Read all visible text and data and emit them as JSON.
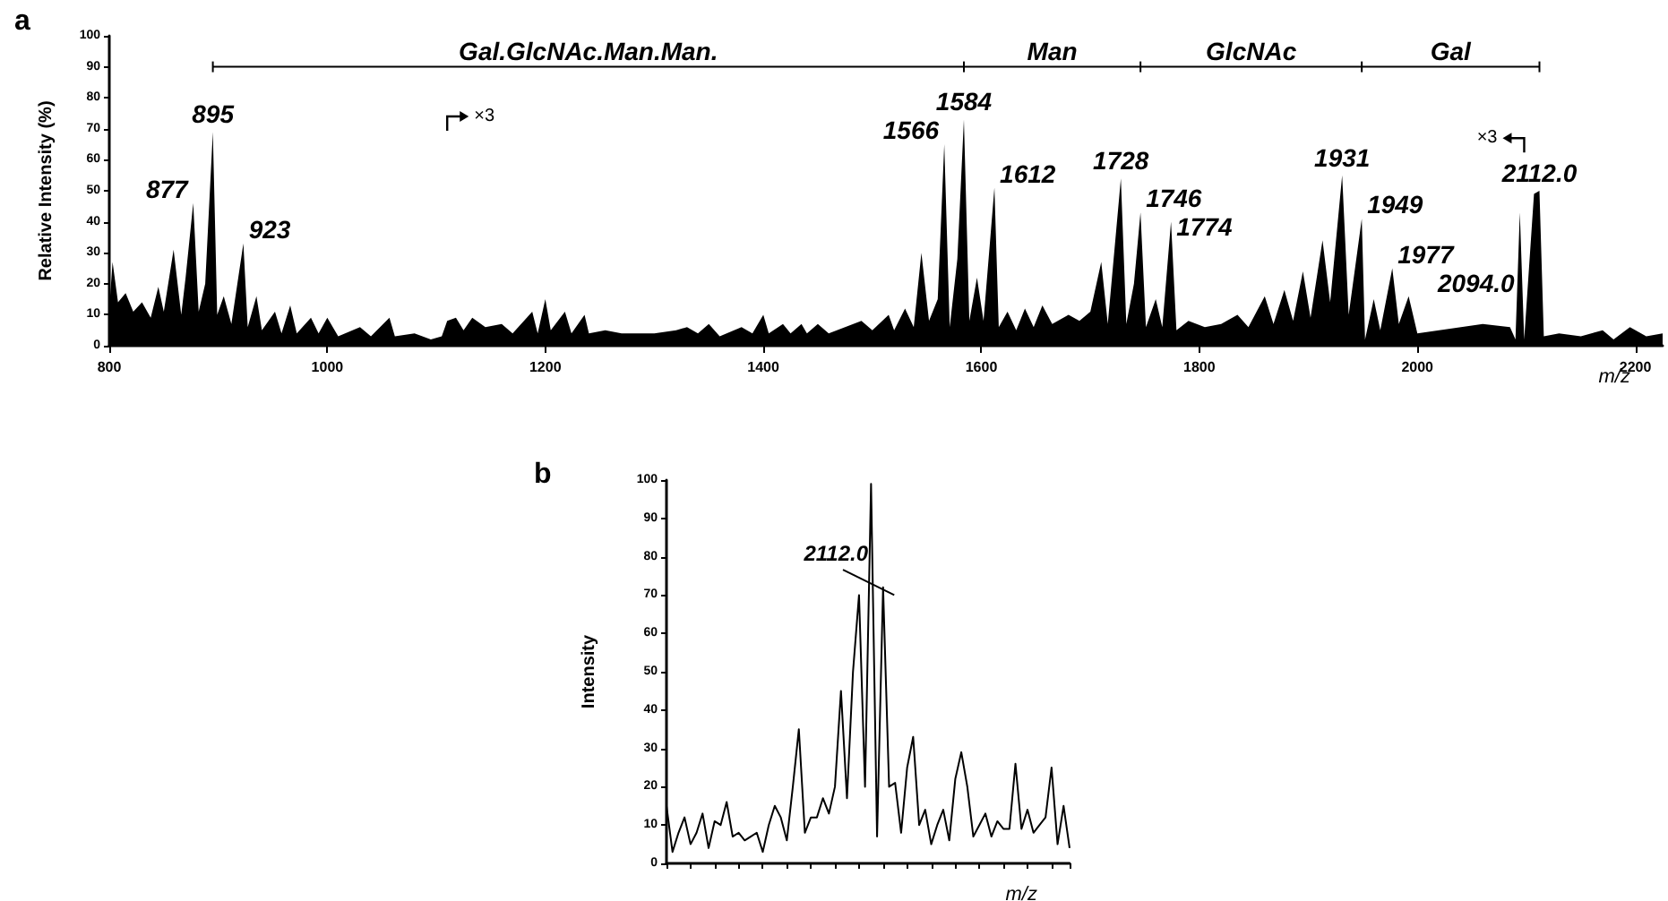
{
  "chart_data": [
    {
      "type": "area",
      "title": "a",
      "xlabel": "m/z",
      "ylabel": "Relative Intensity (%)",
      "color": "#000000",
      "x": [
        800,
        803,
        808,
        815,
        822,
        830,
        838,
        845,
        850,
        859,
        866,
        870,
        877,
        882,
        888,
        895,
        899,
        905,
        912,
        923,
        927,
        935,
        940,
        952,
        958,
        966,
        972,
        985,
        992,
        1000,
        1010,
        1030,
        1040,
        1057,
        1062,
        1080,
        1095,
        1105,
        1110,
        1118,
        1125,
        1133,
        1145,
        1160,
        1170,
        1188,
        1193,
        1200,
        1205,
        1218,
        1224,
        1236,
        1240,
        1255,
        1270,
        1285,
        1300,
        1320,
        1330,
        1340,
        1350,
        1360,
        1380,
        1390,
        1400,
        1405,
        1418,
        1425,
        1435,
        1440,
        1450,
        1460,
        1475,
        1490,
        1500,
        1515,
        1520,
        1530,
        1538,
        1545,
        1552,
        1560,
        1566,
        1571,
        1578,
        1584,
        1589,
        1596,
        1602,
        1612,
        1616,
        1624,
        1632,
        1640,
        1648,
        1656,
        1665,
        1680,
        1690,
        1700,
        1710,
        1716,
        1728,
        1733,
        1740,
        1746,
        1751,
        1760,
        1766,
        1774,
        1779,
        1790,
        1805,
        1820,
        1835,
        1845,
        1860,
        1868,
        1878,
        1886,
        1895,
        1902,
        1913,
        1920,
        1931,
        1937,
        1944,
        1949,
        1952,
        1960,
        1966,
        1977,
        1983,
        1992,
        2000,
        2020,
        2040,
        2060,
        2085,
        2090,
        2094,
        2098,
        2107,
        2112,
        2116,
        2130,
        2150,
        2170,
        2180,
        2195,
        2210,
        2225
      ],
      "values": [
        12,
        27,
        14,
        17,
        11,
        14,
        9,
        19,
        11,
        31,
        10,
        22,
        46,
        11,
        20,
        69,
        10,
        16,
        7,
        33,
        6,
        16,
        5,
        11,
        4,
        13,
        4,
        9,
        4,
        9,
        3,
        6,
        3,
        9,
        3,
        4,
        2,
        3,
        8,
        9,
        5,
        9,
        6,
        7,
        4,
        11,
        4,
        15,
        5,
        11,
        4,
        10,
        4,
        5,
        4,
        4,
        4,
        5,
        6,
        4,
        7,
        3,
        6,
        4,
        10,
        4,
        7,
        4,
        7,
        4,
        7,
        4,
        6,
        8,
        5,
        10,
        5,
        12,
        6,
        30,
        8,
        15,
        65,
        6,
        28,
        73,
        8,
        22,
        8,
        51,
        6,
        11,
        5,
        12,
        6,
        13,
        7,
        10,
        8,
        11,
        27,
        7,
        54,
        7,
        20,
        43,
        6,
        15,
        6,
        40,
        5,
        8,
        6,
        7,
        10,
        6,
        16,
        7,
        18,
        8,
        24,
        9,
        34,
        14,
        55,
        10,
        28,
        41,
        2,
        15,
        5,
        25,
        7,
        16,
        4,
        5,
        6,
        7,
        6,
        2,
        43,
        2,
        49,
        50,
        3,
        4,
        3,
        5,
        2,
        6,
        3,
        4
      ],
      "xlim": [
        800,
        2225
      ],
      "xticks": [
        800,
        1000,
        1200,
        1400,
        1600,
        1800,
        2000,
        2200
      ],
      "ylim": [
        0,
        100
      ],
      "yticks": [
        0,
        10,
        20,
        30,
        40,
        50,
        60,
        70,
        80,
        90,
        100
      ],
      "annotations": [
        {
          "text": "877",
          "x": 877,
          "y": 46
        },
        {
          "text": "895",
          "x": 895,
          "y": 69
        },
        {
          "text": "923",
          "x": 923,
          "y": 33
        },
        {
          "text": "1566",
          "x": 1566,
          "y": 65
        },
        {
          "text": "1584",
          "x": 1584,
          "y": 73
        },
        {
          "text": "1612",
          "x": 1612,
          "y": 51
        },
        {
          "text": "1728",
          "x": 1728,
          "y": 54
        },
        {
          "text": "1746",
          "x": 1746,
          "y": 43
        },
        {
          "text": "1774",
          "x": 1774,
          "y": 40
        },
        {
          "text": "1931",
          "x": 1931,
          "y": 55
        },
        {
          "text": "1949",
          "x": 1949,
          "y": 41
        },
        {
          "text": "1977",
          "x": 1977,
          "y": 25
        },
        {
          "text": "2094.0",
          "x": 2094,
          "y": 43
        },
        {
          "text": "2112.0",
          "x": 2112,
          "y": 50
        },
        "Gal.GlcNAc.Man.Man.",
        "Man",
        "GlcNAc",
        "Gal",
        "×3",
        "×3"
      ]
    },
    {
      "type": "line",
      "title": "b",
      "xlabel": "m/z",
      "ylabel": "Intensity",
      "color": "#000000",
      "tick_labels": "y",
      "categories": [
        null,
        null,
        null,
        null,
        null,
        null,
        null,
        null,
        null,
        null,
        null,
        null,
        null,
        null,
        null,
        null,
        null,
        null,
        null,
        null,
        null,
        null,
        null,
        null,
        null,
        null,
        null,
        null,
        null,
        null,
        null,
        null,
        null,
        null,
        null,
        null,
        null,
        null,
        null,
        null,
        null,
        null,
        null,
        null,
        null,
        null,
        null,
        null,
        null,
        null,
        null,
        null,
        null,
        null,
        null,
        null,
        null,
        null,
        null,
        null,
        null,
        null,
        null,
        null,
        null,
        null,
        null,
        null
      ],
      "values": [
        15,
        3,
        8,
        12,
        5,
        8,
        13,
        4,
        11,
        10,
        16,
        7,
        8,
        6,
        7,
        8,
        3,
        10,
        15,
        12,
        6,
        20,
        35,
        8,
        12,
        12,
        17,
        13,
        20,
        45,
        17,
        50,
        70,
        20,
        99,
        7,
        72,
        20,
        21,
        8,
        25,
        33,
        10,
        14,
        5,
        10,
        14,
        6,
        22,
        29,
        20,
        7,
        10,
        13,
        7,
        11,
        9,
        9,
        26,
        9,
        14,
        8,
        10,
        12,
        25,
        5,
        15,
        4
      ],
      "ylim": [
        0,
        100
      ],
      "yticks": [
        0,
        10,
        20,
        30,
        40,
        50,
        60,
        70,
        80,
        90,
        100
      ],
      "annotations": [
        "2112.0"
      ]
    }
  ]
}
